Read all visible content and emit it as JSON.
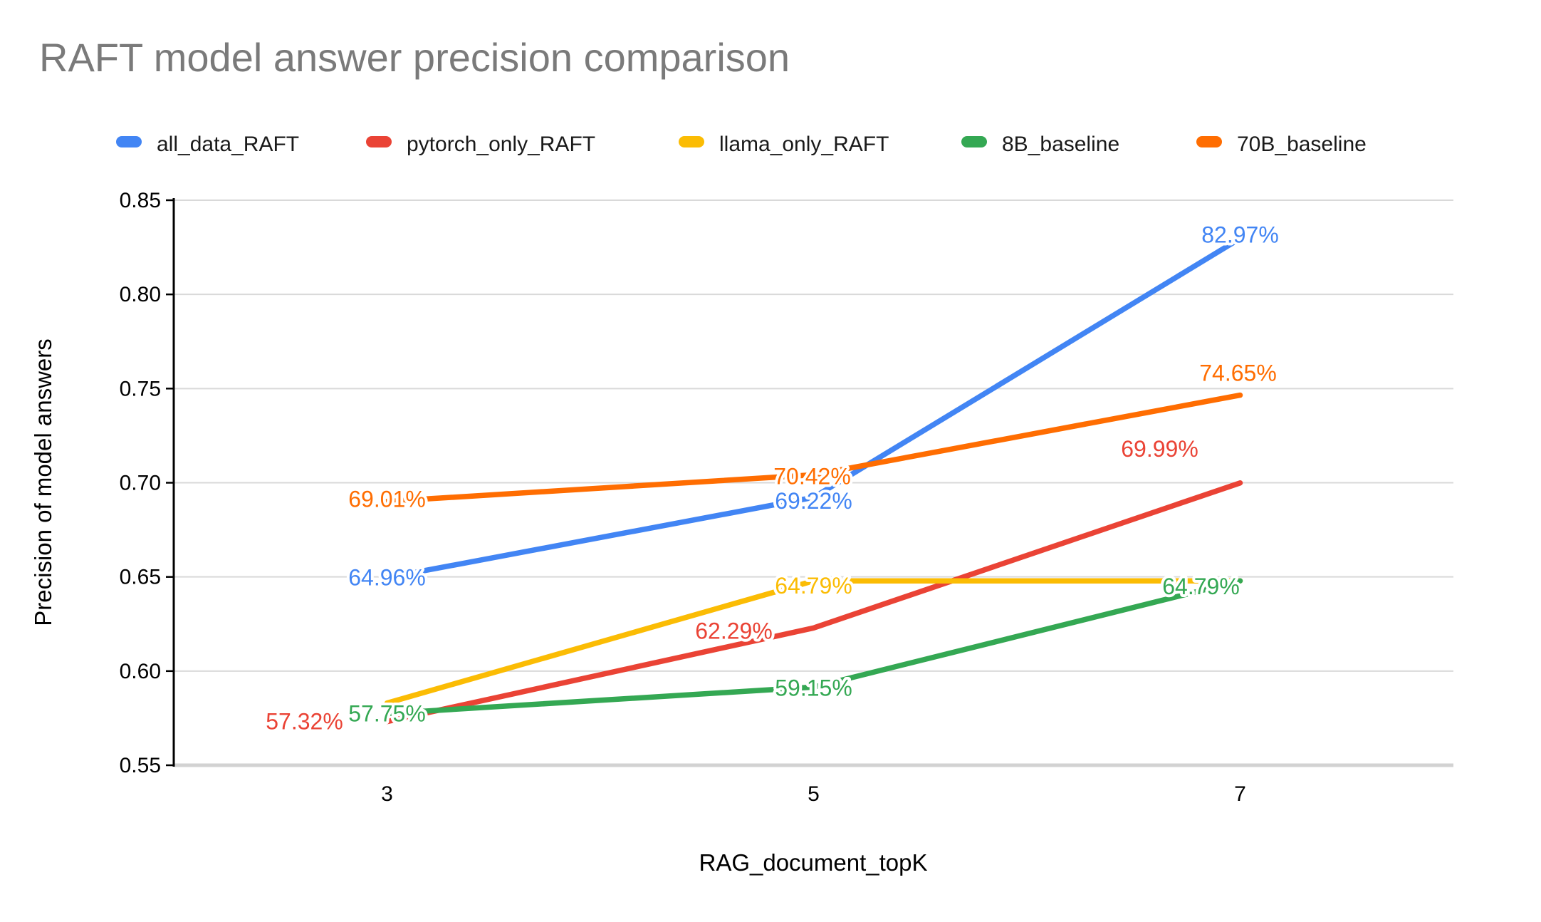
{
  "title": "RAFT model answer precision comparison",
  "chart_data": {
    "type": "line",
    "x": [
      3,
      5,
      7
    ],
    "xtick_labels": [
      "3",
      "5",
      "7"
    ],
    "xlabel": "RAG_document_topK",
    "ylabel": "Precision of model answers",
    "ylim": [
      0.55,
      0.85
    ],
    "ytick_step": 0.05,
    "ytick_labels": [
      "0.85",
      "0.80",
      "0.75",
      "0.70",
      "0.65",
      "0.60",
      "0.55"
    ],
    "grid": true,
    "legend_position": "top",
    "background_color": "#ffffff",
    "gridline_color": "#d9d9d9",
    "series": [
      {
        "name": "all_data_RAFT",
        "color": "#4285F4",
        "values": [
          0.6496,
          0.6922,
          0.8297
        ],
        "labels": [
          "64.96%",
          "69.22%",
          "82.97%"
        ]
      },
      {
        "name": "pytorch_only_RAFT",
        "color": "#EA4335",
        "values": [
          0.5732,
          0.6229,
          0.6999
        ],
        "labels": [
          "57.32%",
          "62.29%",
          "69.99%"
        ]
      },
      {
        "name": "llama_only_RAFT",
        "color": "#FBBC04",
        "values": [
          0.583,
          0.6479,
          0.6479
        ],
        "labels": [
          "",
          "64.79%",
          ""
        ]
      },
      {
        "name": "8B_baseline",
        "color": "#34A853",
        "values": [
          0.5775,
          0.5915,
          0.6479
        ],
        "labels": [
          "57.75%",
          "59.15%",
          "64.79%"
        ]
      },
      {
        "name": "70B_baseline",
        "color": "#FF6D01",
        "values": [
          0.6901,
          0.7042,
          0.7465
        ],
        "labels": [
          "69.01%",
          "70.42%",
          "74.65%"
        ]
      }
    ]
  }
}
